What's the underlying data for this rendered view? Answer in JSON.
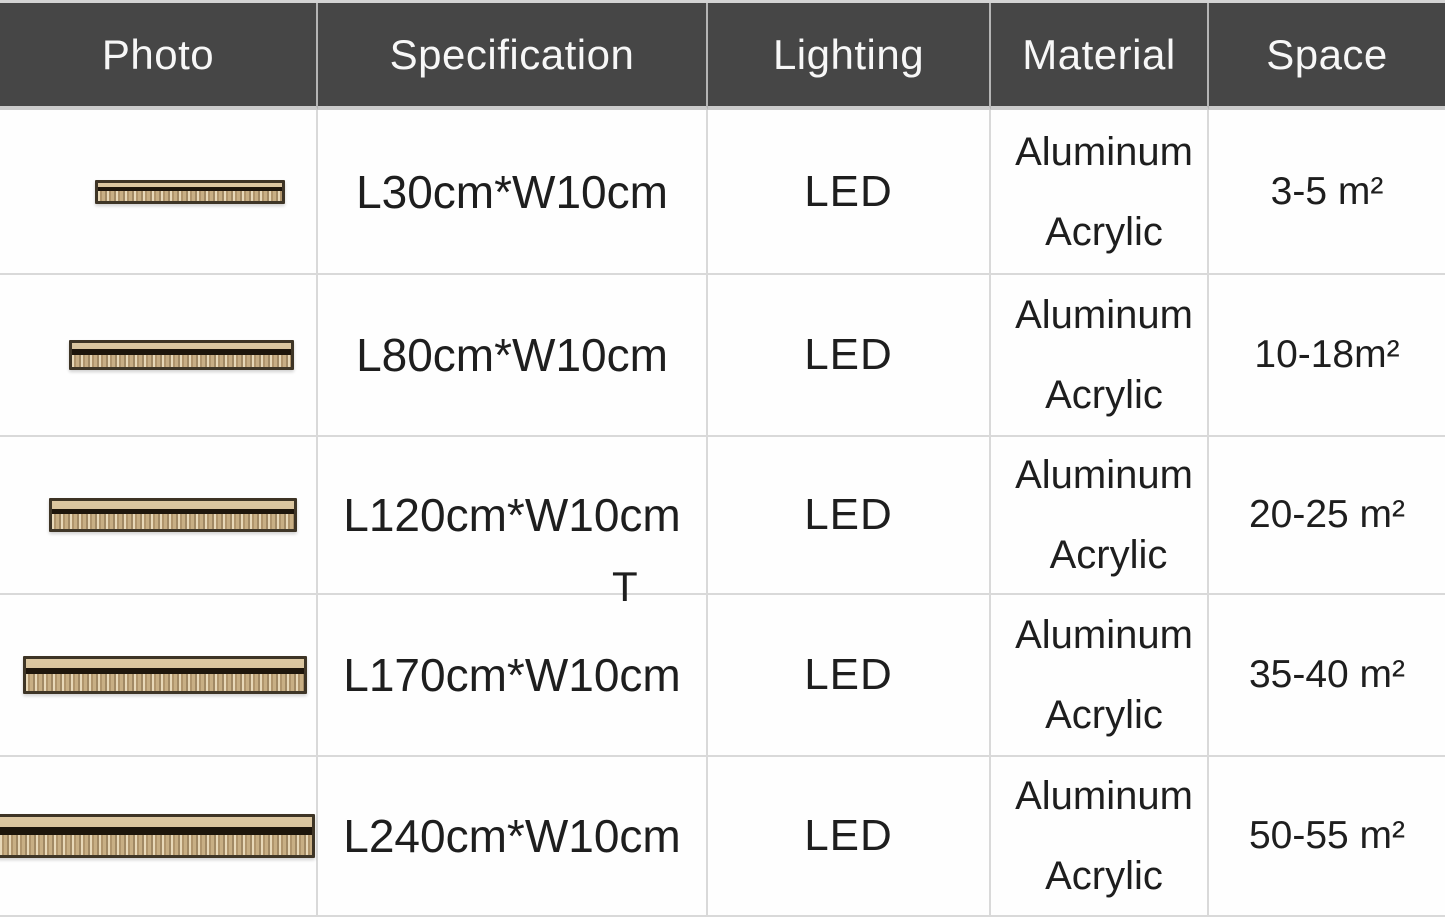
{
  "table": {
    "columns": [
      {
        "label": "Photo"
      },
      {
        "label": "Specification"
      },
      {
        "label": "Lighting"
      },
      {
        "label": "Material"
      },
      {
        "label": "Space"
      }
    ],
    "rows": [
      {
        "photo": "gold-linear-led-bar-small",
        "specification": "L30cm*W10cm",
        "lighting": "LED",
        "material": [
          "Aluminum",
          "Acrylic"
        ],
        "space": "3-5 m²"
      },
      {
        "photo": "gold-linear-led-bar-medium",
        "specification": "L80cm*W10cm",
        "lighting": "LED",
        "material": [
          "Aluminum",
          "Acrylic"
        ],
        "space": "10-18m²"
      },
      {
        "photo": "gold-linear-led-bar-large",
        "specification": "L120cm*W10cm",
        "lighting": "LED",
        "material": [
          "Aluminum",
          " Acrylic"
        ],
        "space": "20-25 m²"
      },
      {
        "photo": "gold-linear-led-bar-xlarge",
        "specification": "L170cm*W10cm",
        "lighting": "LED",
        "material": [
          "Aluminum",
          "Acrylic"
        ],
        "space": "35-40 m²"
      },
      {
        "photo": "gold-linear-led-bar-xxlarge",
        "specification": "L240cm*W10cm",
        "lighting": "LED",
        "material": [
          "Aluminum",
          "Acrylic"
        ],
        "space": "50-55 m²"
      }
    ],
    "stray_text": "T"
  },
  "colors": {
    "header_bg": "#464646",
    "header_text": "#f7f7f7",
    "header_divider": "#b5b5b5",
    "grid_line": "#d9d9d9",
    "body_text": "#1e1e1e",
    "bar_gold": "#d6c19b",
    "bar_stripe": "#1d150b",
    "bar_outline": "#231c12"
  }
}
